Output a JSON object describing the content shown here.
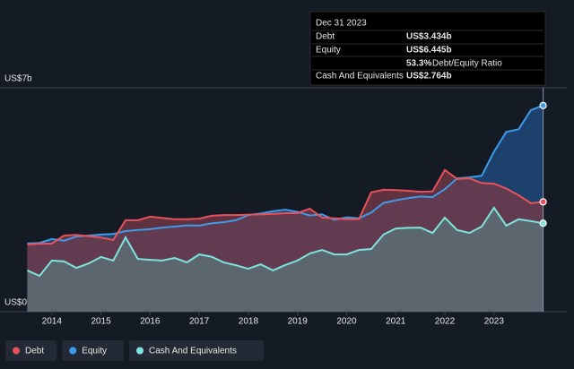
{
  "chart_data": {
    "type": "area",
    "x": [
      2013.5,
      2013.75,
      2014,
      2014.25,
      2014.5,
      2014.75,
      2015,
      2015.25,
      2015.5,
      2015.75,
      2016,
      2016.25,
      2016.5,
      2016.75,
      2017,
      2017.25,
      2017.5,
      2017.75,
      2018,
      2018.25,
      2018.5,
      2018.75,
      2019,
      2019.25,
      2019.5,
      2019.75,
      2020,
      2020.25,
      2020.5,
      2020.75,
      2021,
      2021.25,
      2021.5,
      2021.75,
      2022,
      2022.25,
      2022.5,
      2022.75,
      2023,
      2023.25,
      2023.5,
      2023.75,
      2024
    ],
    "series": [
      {
        "name": "Equity",
        "color": "#3d9be9",
        "values": [
          2.13,
          2.15,
          2.27,
          2.22,
          2.35,
          2.38,
          2.41,
          2.43,
          2.52,
          2.55,
          2.58,
          2.63,
          2.66,
          2.7,
          2.69,
          2.76,
          2.8,
          2.86,
          3.02,
          3.07,
          3.14,
          3.19,
          3.12,
          3.01,
          3.04,
          2.87,
          2.95,
          2.92,
          3.1,
          3.4,
          3.48,
          3.55,
          3.6,
          3.58,
          3.83,
          4.17,
          4.2,
          4.25,
          5.0,
          5.62,
          5.7,
          6.3,
          6.445
        ]
      },
      {
        "name": "Debt",
        "color": "#e8515a",
        "values": [
          2.1,
          2.12,
          2.13,
          2.38,
          2.4,
          2.36,
          2.32,
          2.24,
          2.86,
          2.86,
          2.97,
          2.93,
          2.89,
          2.89,
          2.91,
          3.0,
          3.02,
          3.02,
          3.03,
          3.04,
          3.06,
          3.08,
          3.08,
          3.22,
          2.94,
          2.92,
          2.89,
          2.89,
          3.73,
          3.81,
          3.8,
          3.78,
          3.75,
          3.76,
          4.43,
          4.15,
          4.17,
          4.02,
          4.0,
          3.85,
          3.64,
          3.39,
          3.434
        ]
      },
      {
        "name": "Cash And Equivalents",
        "color": "#7ee3dc",
        "values": [
          1.29,
          1.12,
          1.6,
          1.57,
          1.37,
          1.51,
          1.71,
          1.6,
          2.32,
          1.65,
          1.62,
          1.6,
          1.68,
          1.54,
          1.79,
          1.72,
          1.54,
          1.45,
          1.34,
          1.48,
          1.29,
          1.46,
          1.6,
          1.82,
          1.93,
          1.79,
          1.79,
          1.93,
          1.96,
          2.41,
          2.6,
          2.62,
          2.63,
          2.46,
          2.94,
          2.55,
          2.46,
          2.66,
          3.25,
          2.69,
          2.89,
          2.83,
          2.764
        ]
      }
    ],
    "legend_order": [
      "Debt",
      "Equity",
      "Cash And Equivalents"
    ],
    "xlim": [
      2013,
      2024.5
    ],
    "xticks": [
      2014,
      2015,
      2016,
      2017,
      2018,
      2019,
      2020,
      2021,
      2022,
      2023
    ],
    "ylim": [
      0,
      7
    ],
    "yticks": [
      {
        "value": 0,
        "label": "US$0"
      },
      {
        "value": 7,
        "label": "US$7b"
      }
    ],
    "grid": true,
    "tooltip": {
      "title": "Dec 31 2023",
      "rows": [
        {
          "label": "Debt",
          "value": "US$3.434b",
          "color": "#e8515a"
        },
        {
          "label": "Equity",
          "value": "US$6.445b",
          "color": "#3d9be9"
        }
      ],
      "ratio": "53.3%",
      "ratio_label": "Debt/Equity Ratio",
      "cash": {
        "label": "Cash And Equivalents",
        "value": "US$2.764b",
        "color": "#7ee3dc"
      }
    }
  }
}
